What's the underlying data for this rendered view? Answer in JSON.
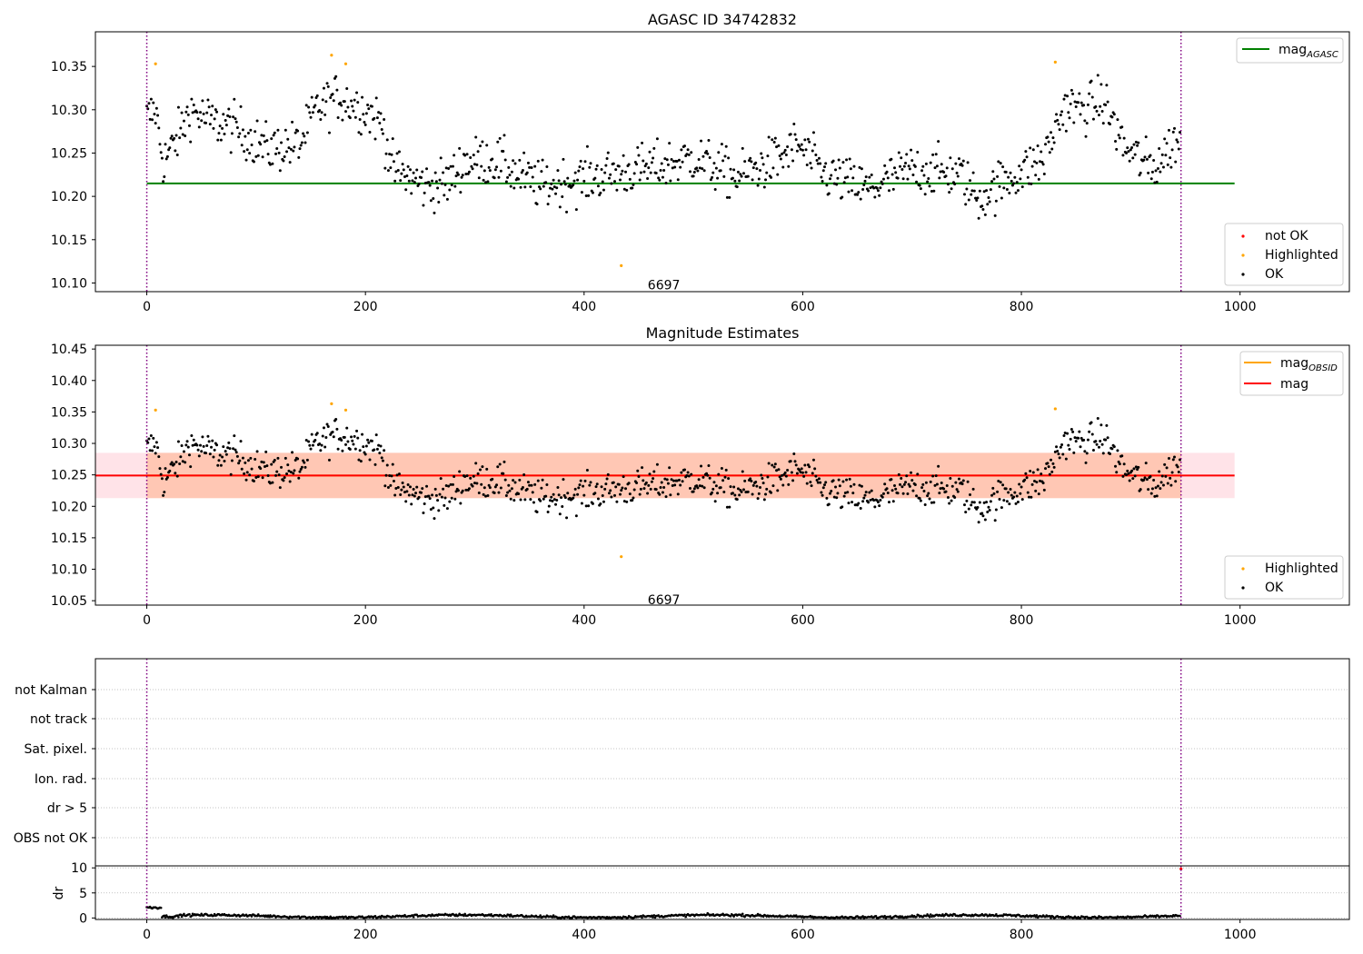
{
  "chart_data": [
    {
      "type": "scatter",
      "title": "AGASC ID 34742832",
      "xlim": [
        -47,
        1100
      ],
      "ylim": [
        10.09,
        10.39
      ],
      "xticks": [
        0,
        200,
        400,
        600,
        800,
        1000
      ],
      "yticks": [
        10.1,
        10.15,
        10.2,
        10.25,
        10.3,
        10.35
      ],
      "obsid_boundaries": [
        0,
        946
      ],
      "obsid_label": "6697",
      "obsid_label_pos": [
        473,
        10.097
      ],
      "reference_lines": [
        {
          "name": "mag_AGASC",
          "y": 10.215,
          "x_range": [
            0,
            995
          ],
          "color": "#008000"
        }
      ],
      "legend_lines": {
        "main": "mag",
        "sub": "AGASC"
      },
      "legend_points": [
        "not OK",
        "Highlighted",
        "OK"
      ],
      "series": [
        {
          "name": "OK",
          "color": "#000000",
          "n": 946,
          "x_range": [
            0,
            946
          ]
        },
        {
          "name": "Highlighted",
          "color": "#ffa500",
          "points": [
            [
              8,
              10.353
            ],
            [
              169,
              10.363
            ],
            [
              182,
              10.353
            ],
            [
              434,
              10.12
            ],
            [
              831,
              10.355
            ]
          ]
        },
        {
          "name": "not OK",
          "color": "#ff0000",
          "points": []
        }
      ]
    },
    {
      "type": "scatter",
      "title": "Magnitude Estimates",
      "xlim": [
        -47,
        1100
      ],
      "ylim": [
        10.043,
        10.456
      ],
      "xticks": [
        0,
        200,
        400,
        600,
        800,
        1000
      ],
      "yticks": [
        10.05,
        10.1,
        10.15,
        10.2,
        10.25,
        10.3,
        10.35,
        10.4,
        10.45
      ],
      "obsid_boundaries": [
        0,
        946
      ],
      "obsid_label": "6697",
      "obsid_label_pos": [
        473,
        10.05
      ],
      "bands": [
        {
          "name": "mag band",
          "y_range": [
            10.213,
            10.285
          ],
          "x_range": [
            -47,
            995
          ],
          "color": "#ffc0cb"
        },
        {
          "name": "mag_OBSID band",
          "y_range": [
            10.213,
            10.285
          ],
          "x_range": [
            0,
            946
          ],
          "color": "#ffb088"
        }
      ],
      "reference_lines": [
        {
          "name": "mag_OBSID",
          "y": 10.249,
          "x_range": [
            0,
            946
          ],
          "color": "#ffa500"
        },
        {
          "name": "mag",
          "y": 10.249,
          "x_range": [
            -47,
            995
          ],
          "color": "#ff0000"
        }
      ],
      "legend_lines": [
        {
          "main": "mag",
          "sub": "OBSID"
        },
        {
          "main": "mag",
          "sub": ""
        }
      ],
      "legend_points": [
        "Highlighted",
        "OK"
      ],
      "series": [
        {
          "name": "OK",
          "color": "#000000",
          "n": 946,
          "x_range": [
            0,
            946
          ]
        },
        {
          "name": "Highlighted",
          "color": "#ffa500",
          "points": [
            [
              8,
              10.353
            ],
            [
              169,
              10.363
            ],
            [
              182,
              10.353
            ],
            [
              434,
              10.12
            ],
            [
              831,
              10.355
            ]
          ]
        }
      ]
    },
    {
      "type": "scatter",
      "title": "",
      "xlim": [
        -47,
        1100
      ],
      "obsid_boundaries": [
        0,
        946
      ],
      "flag_rows": [
        "not Kalman",
        "not track",
        "Sat. pixel.",
        "Ion. rad.",
        "dr > 5",
        "OBS not OK"
      ],
      "flag_points": [],
      "grid": true
    },
    {
      "type": "scatter",
      "title": "",
      "xlim": [
        -47,
        1100
      ],
      "ylim": [
        -0.3,
        10.4
      ],
      "ylabel": "dr",
      "xticks": [
        0,
        200,
        400,
        600,
        800,
        1000
      ],
      "yticks": [
        0,
        5,
        10
      ],
      "obsid_boundaries": [
        0,
        946
      ],
      "series": [
        {
          "name": "dr",
          "color": "#000000",
          "n": 946,
          "x_range": [
            0,
            946
          ]
        },
        {
          "name": "dr not OK",
          "color": "#ff0000",
          "points": [
            [
              946,
              9.8
            ]
          ]
        }
      ]
    }
  ]
}
